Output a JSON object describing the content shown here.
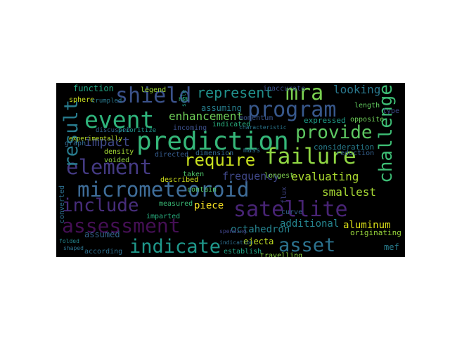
{
  "word_cloud": {
    "background": "#000000",
    "words": [
      {
        "text": "prediction",
        "color": "#35b779"
      },
      {
        "text": "micrometeoroid",
        "color": "#3f6e9a"
      },
      {
        "text": "failure",
        "color": "#90d743"
      },
      {
        "text": "satellite",
        "color": "#482475"
      },
      {
        "text": "program",
        "color": "#38588c"
      },
      {
        "text": "element",
        "color": "#443a83"
      },
      {
        "text": "include",
        "color": "#472d7b"
      },
      {
        "text": "assessment",
        "color": "#440f54"
      },
      {
        "text": "indicate",
        "color": "#1f988b"
      },
      {
        "text": "event",
        "color": "#2fb47c"
      },
      {
        "text": "shield",
        "color": "#3b528b"
      },
      {
        "text": "mra",
        "color": "#7ad151"
      },
      {
        "text": "asset",
        "color": "#2c728e"
      },
      {
        "text": "challenge",
        "color": "#3dbc74"
      },
      {
        "text": "result",
        "color": "#287c8e"
      },
      {
        "text": "provide",
        "color": "#5ec962"
      },
      {
        "text": "require",
        "color": "#c8e020"
      },
      {
        "text": "represent",
        "color": "#21918c"
      },
      {
        "text": "impact",
        "color": "#3e4989"
      },
      {
        "text": "enhancement",
        "color": "#6ece58"
      },
      {
        "text": "evaluating",
        "color": "#addc30"
      },
      {
        "text": "looking",
        "color": "#2a788e"
      },
      {
        "text": "smallest",
        "color": "#a8db34"
      },
      {
        "text": "frequency",
        "color": "#3f4788"
      },
      {
        "text": "octahedron",
        "color": "#26828e"
      },
      {
        "text": "aluminum",
        "color": "#dde318"
      },
      {
        "text": "additional",
        "color": "#25848e"
      },
      {
        "text": "consideration",
        "color": "#287d8e"
      },
      {
        "text": "piece",
        "color": "#fde725"
      },
      {
        "text": "assuming",
        "color": "#277f8e"
      },
      {
        "text": "function",
        "color": "#22a884"
      },
      {
        "text": "assumed",
        "color": "#33638d"
      },
      {
        "text": "expressed",
        "color": "#1f9e89"
      },
      {
        "text": "opposite",
        "color": "#6ece58"
      },
      {
        "text": "reduction",
        "color": "#35608d"
      },
      {
        "text": "ejecta",
        "color": "#c2df23"
      },
      {
        "text": "mef",
        "color": "#287d8e"
      },
      {
        "text": "originating",
        "color": "#9bd93c"
      },
      {
        "text": "travelling",
        "color": "#8ed645"
      },
      {
        "text": "establish",
        "color": "#20a486"
      },
      {
        "text": "curve",
        "color": "#34618d"
      },
      {
        "text": "according",
        "color": "#2e6f8e"
      },
      {
        "text": "imparted",
        "color": "#29af7f"
      },
      {
        "text": "density",
        "color": "#a5db36"
      },
      {
        "text": "voided",
        "color": "#95d840"
      },
      {
        "text": "sphere",
        "color": "#cae11f"
      },
      {
        "text": "graph",
        "color": "#31688e"
      },
      {
        "text": "legend",
        "color": "#a2da37"
      },
      {
        "text": "incoming",
        "color": "#3c4f8a"
      },
      {
        "text": "directed",
        "color": "#365c8d"
      },
      {
        "text": "dimension",
        "color": "#31668e"
      },
      {
        "text": "mass",
        "color": "#2d718e"
      },
      {
        "text": "indicated",
        "color": "#2ab07f"
      },
      {
        "text": "momentum",
        "color": "#3a548c"
      },
      {
        "text": "longest",
        "color": "#7fd34e"
      },
      {
        "text": "taken",
        "color": "#4fc46a"
      },
      {
        "text": "contain",
        "color": "#56c667"
      },
      {
        "text": "described",
        "color": "#d2e21b"
      },
      {
        "text": "measured",
        "color": "#3aba76"
      },
      {
        "text": "length",
        "color": "#63cb5f"
      },
      {
        "text": "type",
        "color": "#3e4c8a"
      },
      {
        "text": "flux",
        "color": "#404588"
      },
      {
        "text": "converted",
        "color": "#2d6f8e"
      },
      {
        "text": "experimentally",
        "color": "#b8de29"
      },
      {
        "text": "discussed",
        "color": "#32658e"
      },
      {
        "text": "prioritize",
        "color": "#1f948c"
      },
      {
        "text": "crumpled",
        "color": "#29798e"
      },
      {
        "text": "inaccurate",
        "color": "#3d4e8a"
      },
      {
        "text": "spending",
        "color": "#404387"
      },
      {
        "text": "characteristic",
        "color": "#2a768e"
      },
      {
        "text": "folded",
        "color": "#24878e"
      },
      {
        "text": "shaped",
        "color": "#2c738e"
      },
      {
        "text": "scale",
        "color": "#1e9c89"
      },
      {
        "text": "indication",
        "color": "#2e6e8e"
      },
      {
        "text": "hit",
        "color": "#34b679"
      }
    ]
  }
}
